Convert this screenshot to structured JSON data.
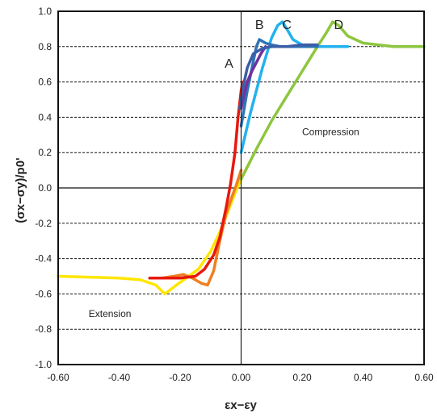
{
  "chart_data": {
    "type": "line",
    "title": "",
    "xlabel": "εx−εy",
    "ylabel": "(σx−σy)/p0'",
    "xlim": [
      -0.6,
      0.6
    ],
    "ylim": [
      -1.0,
      1.0
    ],
    "x_ticks": [
      "-0.60",
      "-0.40",
      "-0.20",
      "0.00",
      "0.20",
      "0.40",
      "0.60"
    ],
    "y_ticks": [
      "1.0",
      "0.8",
      "0.6",
      "0.4",
      "0.2",
      "0.0",
      "-0.2",
      "-0.4",
      "-0.6",
      "-0.8",
      "-1.0"
    ],
    "grid": "horizontal dashed",
    "colors": {
      "A": "#3b5ea8",
      "A_tail": "#7030a0",
      "B": "#2e74b5",
      "C": "#22b2ee",
      "D": "#8dc63f",
      "red": "#e8180c",
      "orange": "#ee7f22",
      "yellow": "#ffe600",
      "zero_line": "#222222"
    },
    "annotations": [
      {
        "text": "A",
        "x": -0.04,
        "y": 0.68
      },
      {
        "text": "B",
        "x": 0.06,
        "y": 0.9
      },
      {
        "text": "C",
        "x": 0.15,
        "y": 0.9
      },
      {
        "text": "D",
        "x": 0.32,
        "y": 0.9
      },
      {
        "text": "Compression",
        "x": 0.2,
        "y": 0.3
      },
      {
        "text": "Extension",
        "x": -0.5,
        "y": -0.73
      }
    ],
    "series": [
      {
        "id": "yellow",
        "x": [
          -0.6,
          -0.5,
          -0.4,
          -0.33,
          -0.28,
          -0.25,
          -0.22,
          -0.18,
          -0.14,
          -0.1,
          -0.07,
          -0.04,
          -0.02,
          0.0,
          0.03
        ],
        "y": [
          -0.5,
          -0.505,
          -0.51,
          -0.52,
          -0.55,
          -0.6,
          -0.56,
          -0.51,
          -0.46,
          -0.36,
          -0.25,
          -0.12,
          -0.03,
          0.05,
          0.15
        ]
      },
      {
        "id": "orange",
        "x": [
          -0.3,
          -0.26,
          -0.22,
          -0.19,
          -0.16,
          -0.13,
          -0.11,
          -0.09,
          -0.07,
          -0.05,
          -0.03,
          -0.015,
          0.0
        ],
        "y": [
          -0.51,
          -0.51,
          -0.5,
          -0.49,
          -0.51,
          -0.54,
          -0.55,
          -0.47,
          -0.3,
          -0.15,
          -0.05,
          0.02,
          0.1
        ]
      },
      {
        "id": "red",
        "x": [
          -0.3,
          -0.25,
          -0.2,
          -0.15,
          -0.12,
          -0.09,
          -0.07,
          -0.05,
          -0.035,
          -0.02,
          -0.01,
          0.0,
          0.005
        ],
        "y": [
          -0.51,
          -0.51,
          -0.51,
          -0.5,
          -0.46,
          -0.38,
          -0.28,
          -0.12,
          0.02,
          0.2,
          0.4,
          0.55,
          0.6
        ]
      },
      {
        "id": "A_tail",
        "x": [
          0.0,
          0.01,
          0.02,
          0.035,
          0.05,
          0.065,
          0.08
        ],
        "y": [
          0.45,
          0.53,
          0.6,
          0.66,
          0.71,
          0.76,
          0.8
        ]
      },
      {
        "id": "A",
        "x": [
          -0.005,
          0.0,
          0.01,
          0.02,
          0.04,
          0.07,
          0.1,
          0.15,
          0.2,
          0.25
        ],
        "y": [
          0.45,
          0.5,
          0.6,
          0.68,
          0.76,
          0.79,
          0.8,
          0.8,
          0.81,
          0.81
        ]
      },
      {
        "id": "B",
        "x": [
          0.0,
          0.02,
          0.05,
          0.06,
          0.08,
          0.1,
          0.13,
          0.16,
          0.2,
          0.25
        ],
        "y": [
          0.35,
          0.55,
          0.8,
          0.84,
          0.82,
          0.81,
          0.8,
          0.8,
          0.8,
          0.8
        ]
      },
      {
        "id": "C",
        "x": [
          0.0,
          0.03,
          0.07,
          0.1,
          0.12,
          0.135,
          0.15,
          0.17,
          0.2,
          0.25,
          0.3,
          0.35
        ],
        "y": [
          0.2,
          0.42,
          0.68,
          0.85,
          0.92,
          0.94,
          0.9,
          0.84,
          0.81,
          0.8,
          0.8,
          0.8
        ]
      },
      {
        "id": "D",
        "x": [
          0.0,
          0.05,
          0.1,
          0.15,
          0.2,
          0.25,
          0.28,
          0.3,
          0.32,
          0.35,
          0.4,
          0.45,
          0.5,
          0.55,
          0.6
        ],
        "y": [
          0.05,
          0.22,
          0.38,
          0.52,
          0.66,
          0.8,
          0.88,
          0.94,
          0.92,
          0.86,
          0.82,
          0.81,
          0.8,
          0.8,
          0.8
        ]
      }
    ],
    "draw_order": [
      "yellow",
      "orange",
      "red",
      "D",
      "C",
      "B",
      "A_tail",
      "A"
    ]
  }
}
